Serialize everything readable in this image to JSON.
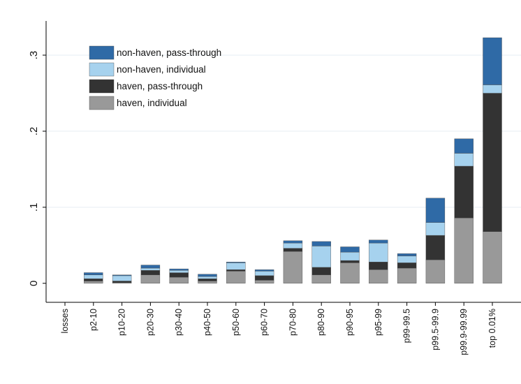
{
  "chart_data": {
    "type": "bar",
    "stacked": true,
    "categories": [
      "losses",
      "p2-10",
      "p10-20",
      "p20-30",
      "p30-40",
      "p40-50",
      "p50-60",
      "p60-70",
      "p70-80",
      "p80-90",
      "p90-95",
      "p95-99",
      "p99-99.5",
      "p99.5-99.9",
      "p99.9-99.99",
      "top 0.01%"
    ],
    "series": [
      {
        "name": "haven, individual",
        "color": "#999999",
        "values": [
          0,
          0.003,
          0.001,
          0.011,
          0.008,
          0.003,
          0.016,
          0.004,
          0.042,
          0.011,
          0.027,
          0.018,
          0.02,
          0.031,
          0.086,
          0.068
        ]
      },
      {
        "name": "haven, pass-through",
        "color": "#333333",
        "values": [
          0,
          0.003,
          0.002,
          0.006,
          0.006,
          0.003,
          0.002,
          0.006,
          0.004,
          0.01,
          0.003,
          0.01,
          0.007,
          0.032,
          0.068,
          0.182
        ]
      },
      {
        "name": "non-haven, individual",
        "color": "#a6d2ee",
        "values": [
          0,
          0.005,
          0.007,
          0.003,
          0.003,
          0.003,
          0.009,
          0.006,
          0.007,
          0.028,
          0.011,
          0.025,
          0.009,
          0.017,
          0.017,
          0.011
        ]
      },
      {
        "name": "non-haven, pass-through",
        "color": "#2f6aa6",
        "values": [
          0,
          0.003,
          0.001,
          0.004,
          0.002,
          0.003,
          0.001,
          0.002,
          0.003,
          0.006,
          0.007,
          0.004,
          0.003,
          0.032,
          0.019,
          0.062
        ]
      }
    ],
    "legend_order": [
      "non-haven, pass-through",
      "non-haven, individual",
      "haven, pass-through",
      "haven, individual"
    ],
    "legend_position": "top-left",
    "yticks": [
      0,
      0.1,
      0.2,
      0.3
    ],
    "ytick_labels": [
      "0",
      ".1",
      ".2",
      ".3"
    ],
    "ylim": [
      -0.025,
      0.345
    ],
    "grid": true,
    "xlabel": "",
    "ylabel": ""
  }
}
